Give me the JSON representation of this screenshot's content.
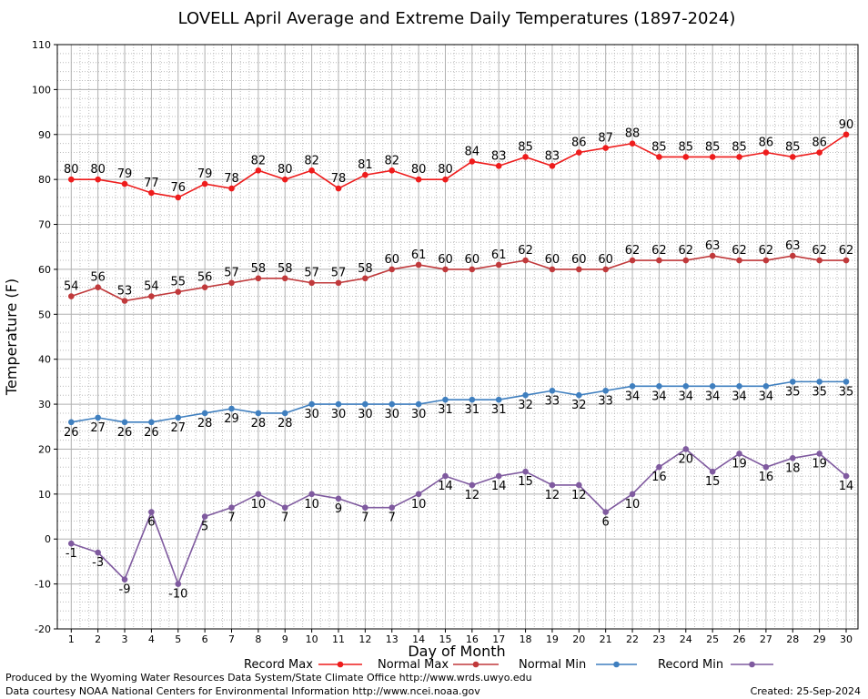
{
  "chart_data": {
    "type": "line",
    "title": "LOVELL April Average and Extreme Daily Temperatures (1897-2024)",
    "xlabel": "Day of Month",
    "ylabel": "Temperature (F)",
    "ylim": [
      -20,
      110
    ],
    "yticks": [
      -20,
      -10,
      0,
      10,
      20,
      30,
      40,
      50,
      60,
      70,
      80,
      90,
      100,
      110
    ],
    "x": [
      1,
      2,
      3,
      4,
      5,
      6,
      7,
      8,
      9,
      10,
      11,
      12,
      13,
      14,
      15,
      16,
      17,
      18,
      19,
      20,
      21,
      22,
      23,
      24,
      25,
      26,
      27,
      28,
      29,
      30
    ],
    "grid": true,
    "legend_position": "bottom",
    "series": [
      {
        "name": "Record Max",
        "color": "#ee1c1c",
        "label_position": "above",
        "values": [
          80,
          80,
          79,
          77,
          76,
          79,
          78,
          82,
          80,
          82,
          78,
          81,
          82,
          80,
          80,
          84,
          83,
          85,
          83,
          86,
          87,
          88,
          85,
          85,
          85,
          85,
          86,
          85,
          86,
          90
        ]
      },
      {
        "name": "Normal Max",
        "color": "#c0393b",
        "label_position": "above",
        "values": [
          54,
          56,
          53,
          54,
          55,
          56,
          57,
          58,
          58,
          57,
          57,
          58,
          60,
          61,
          60,
          60,
          61,
          62,
          60,
          60,
          60,
          62,
          62,
          62,
          63,
          62,
          62,
          63,
          62,
          62
        ]
      },
      {
        "name": "Normal Min",
        "color": "#3f7fbf",
        "label_position": "below",
        "values": [
          26,
          27,
          26,
          26,
          27,
          28,
          29,
          28,
          28,
          30,
          30,
          30,
          30,
          30,
          31,
          31,
          31,
          32,
          33,
          32,
          33,
          34,
          34,
          34,
          34,
          34,
          34,
          35,
          35,
          35
        ]
      },
      {
        "name": "Record Min",
        "color": "#7f5a9f",
        "label_position": "below",
        "values": [
          -1,
          -3,
          -9,
          6,
          -10,
          5,
          7,
          10,
          7,
          10,
          9,
          7,
          7,
          10,
          14,
          12,
          14,
          15,
          12,
          12,
          6,
          10,
          16,
          20,
          15,
          19,
          16,
          18,
          19,
          14
        ]
      }
    ]
  },
  "footer": {
    "line1": "Produced by the Wyoming Water Resources Data System/State Climate Office http://www.wrds.uwyo.edu",
    "line2": "Data courtesy NOAA National Centers for Environmental Information http://www.ncei.noaa.gov",
    "created": "Created:  25-Sep-2024"
  }
}
